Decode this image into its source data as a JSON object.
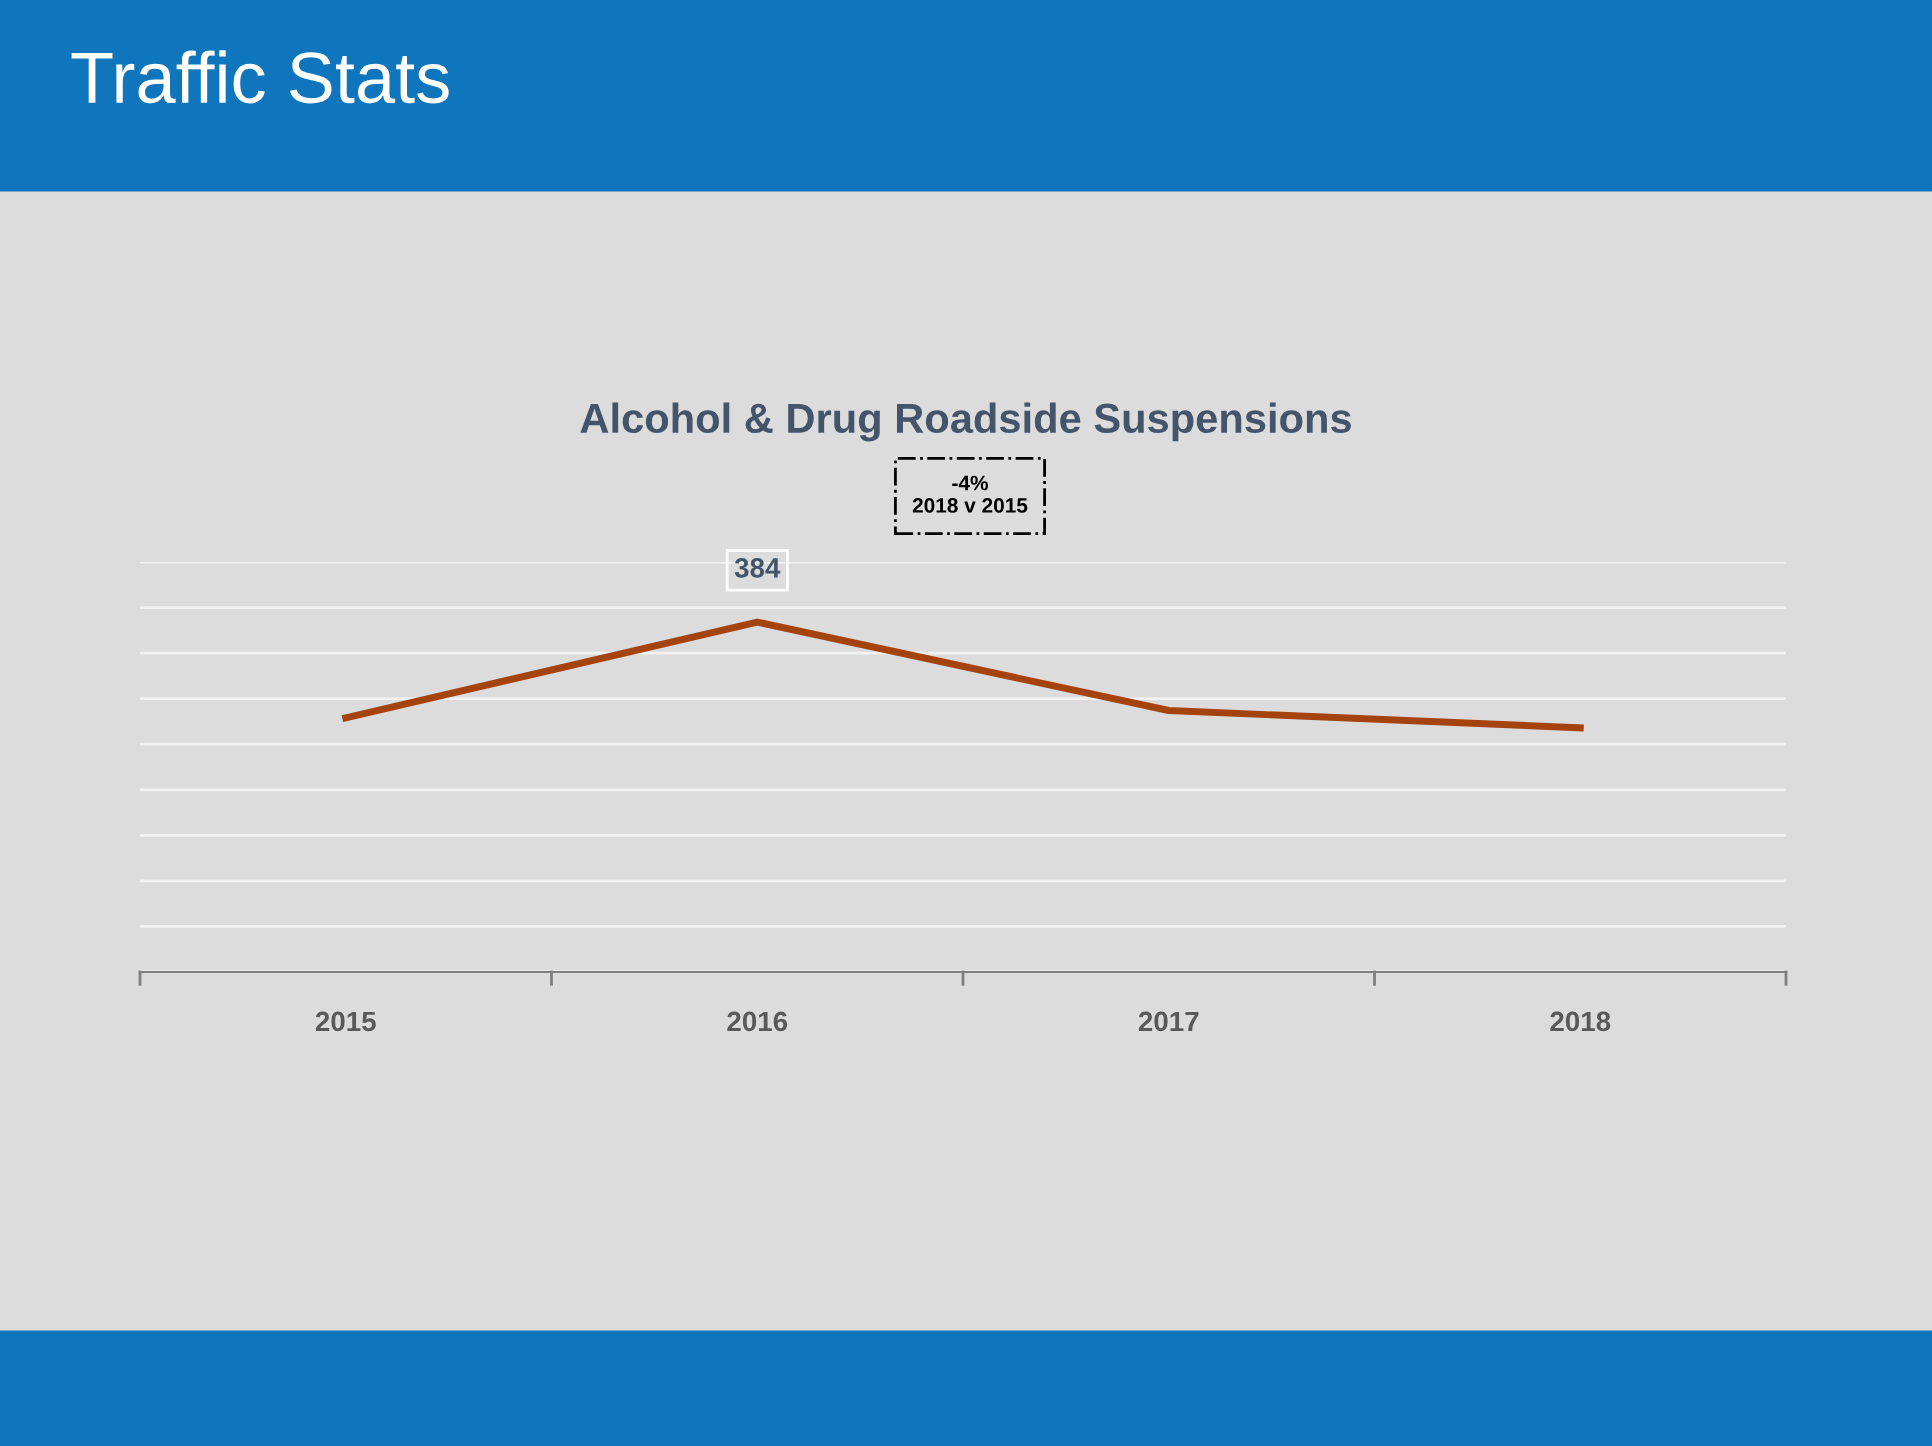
{
  "chart_data": {
    "type": "line",
    "title": "Traffic Stats",
    "subtitle": "Alcohol & Drug Roadside Suspensions",
    "categories": [
      "2015",
      "2016",
      "2017",
      "2018"
    ],
    "series": [
      {
        "color": "#a5430f",
        "values": [
          279,
          384,
          287,
          268
        ],
        "value_labels": [
          null,
          "384",
          null,
          null
        ]
      }
    ],
    "ylim": [
      0,
      450
    ],
    "yticks": [
      {
        "value": 0,
        "label": null
      },
      {
        "value": 50,
        "label": null
      },
      {
        "value": 100,
        "label": null
      },
      {
        "value": 150,
        "label": null
      },
      {
        "value": 200,
        "label": null
      },
      {
        "value": 250,
        "label": null
      },
      {
        "value": 300,
        "label": null
      },
      {
        "value": 350,
        "label": null
      },
      {
        "value": 400,
        "label": null
      },
      {
        "value": 450,
        "label": null
      }
    ],
    "grid": "y",
    "legend": false,
    "line_style": "solid",
    "annotations": [
      "-4%\n2018 v 2015"
    ]
  }
}
